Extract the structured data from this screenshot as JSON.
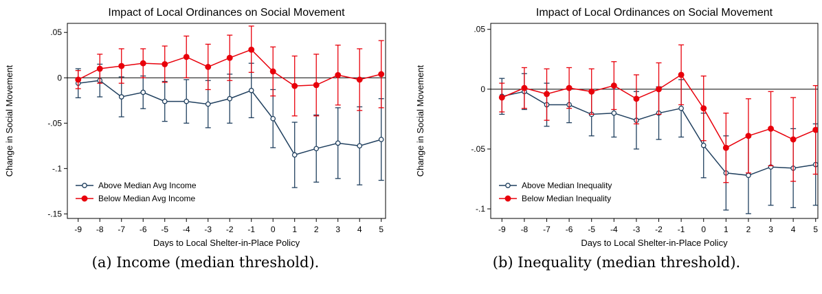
{
  "colors": {
    "above": "#1f3f5e",
    "below": "#e8000b",
    "zero_line": "#000000",
    "frame": "#000000"
  },
  "chart_data": [
    {
      "type": "line",
      "title": "Impact of Local Ordinances on Social Movement",
      "xlabel": "Days to Local Shelter-in-Place Policy",
      "ylabel": "Change in Social Movement",
      "x": [
        -9,
        -8,
        -7,
        -6,
        -5,
        -4,
        -3,
        -2,
        -1,
        0,
        1,
        2,
        3,
        4,
        5
      ],
      "xlim": [
        -9.5,
        5.2
      ],
      "ylim": [
        -0.155,
        0.06
      ],
      "yticks": [
        0.05,
        0,
        -0.05,
        -0.1,
        -0.15
      ],
      "ytick_labels": [
        ".05",
        "0",
        "-.05",
        "-.1",
        "-.15"
      ],
      "grid": false,
      "legend_position": "bottom-left",
      "series": [
        {
          "name": "Above Median Avg Income",
          "color_key": "above",
          "marker": "hollow-circle",
          "values": [
            -0.006,
            -0.003,
            -0.021,
            -0.016,
            -0.026,
            -0.026,
            -0.029,
            -0.023,
            -0.014,
            -0.045,
            -0.085,
            -0.078,
            -0.072,
            -0.075,
            -0.068
          ],
          "ci_low": [
            -0.022,
            -0.021,
            -0.043,
            -0.034,
            -0.048,
            -0.05,
            -0.055,
            -0.05,
            -0.044,
            -0.077,
            -0.121,
            -0.115,
            -0.111,
            -0.118,
            -0.113
          ],
          "ci_high": [
            0.01,
            0.015,
            0.001,
            0.002,
            -0.004,
            -0.002,
            -0.003,
            0.004,
            0.016,
            -0.013,
            -0.049,
            -0.041,
            -0.033,
            -0.032,
            -0.023
          ]
        },
        {
          "name": "Below Median Avg Income",
          "color_key": "below",
          "marker": "filled-circle",
          "values": [
            -0.002,
            0.01,
            0.013,
            0.016,
            0.015,
            0.023,
            0.012,
            0.022,
            0.031,
            0.007,
            -0.009,
            -0.008,
            0.003,
            -0.002,
            0.004
          ],
          "ci_low": [
            -0.012,
            -0.006,
            -0.006,
            0.0,
            -0.005,
            0.0,
            -0.013,
            -0.003,
            0.006,
            -0.02,
            -0.042,
            -0.042,
            -0.03,
            -0.036,
            -0.033
          ],
          "ci_high": [
            0.008,
            0.026,
            0.032,
            0.032,
            0.035,
            0.046,
            0.037,
            0.047,
            0.057,
            0.034,
            0.024,
            0.026,
            0.036,
            0.032,
            0.041
          ]
        }
      ],
      "caption": "(a) Income (median threshold)."
    },
    {
      "type": "line",
      "title": "Impact of Local Ordinances on Social Movement",
      "xlabel": "Days to Local Shelter-in-Place Policy",
      "ylabel": "Change in Social Movement",
      "x": [
        -9,
        -8,
        -7,
        -6,
        -5,
        -4,
        -3,
        -2,
        -1,
        0,
        1,
        2,
        3,
        4,
        5
      ],
      "xlim": [
        -9.5,
        5.1
      ],
      "ylim": [
        -0.108,
        0.055
      ],
      "yticks": [
        0.05,
        0,
        -0.05,
        -0.1
      ],
      "ytick_labels": [
        ".05",
        "0",
        "-.05",
        "-.1"
      ],
      "grid": false,
      "legend_position": "bottom-left",
      "series": [
        {
          "name": "Above Median Inequality",
          "color_key": "above",
          "marker": "hollow-circle",
          "values": [
            -0.006,
            -0.002,
            -0.013,
            -0.013,
            -0.021,
            -0.02,
            -0.026,
            -0.02,
            -0.016,
            -0.047,
            -0.07,
            -0.072,
            -0.065,
            -0.066,
            -0.063
          ],
          "ci_low": [
            -0.021,
            -0.017,
            -0.031,
            -0.028,
            -0.039,
            -0.04,
            -0.05,
            -0.042,
            -0.04,
            -0.074,
            -0.101,
            -0.104,
            -0.097,
            -0.099,
            -0.097
          ],
          "ci_high": [
            0.009,
            0.013,
            0.005,
            0.002,
            -0.003,
            0.0,
            -0.002,
            0.002,
            0.008,
            -0.02,
            -0.039,
            -0.04,
            -0.033,
            -0.033,
            -0.029
          ]
        },
        {
          "name": "Below Median Inequality",
          "color_key": "below",
          "marker": "filled-circle",
          "values": [
            -0.007,
            0.001,
            -0.004,
            0.001,
            -0.002,
            0.003,
            -0.008,
            0.0,
            0.012,
            -0.016,
            -0.049,
            -0.039,
            -0.033,
            -0.042,
            -0.034
          ],
          "ci_low": [
            -0.019,
            -0.016,
            -0.026,
            -0.016,
            -0.021,
            -0.017,
            -0.029,
            -0.021,
            -0.013,
            -0.043,
            -0.078,
            -0.07,
            -0.064,
            -0.077,
            -0.071
          ],
          "ci_high": [
            0.005,
            0.018,
            0.017,
            0.018,
            0.017,
            0.023,
            0.012,
            0.022,
            0.037,
            0.011,
            -0.02,
            -0.008,
            -0.002,
            -0.007,
            0.003
          ]
        }
      ],
      "caption": "(b) Inequality (median threshold)."
    }
  ]
}
